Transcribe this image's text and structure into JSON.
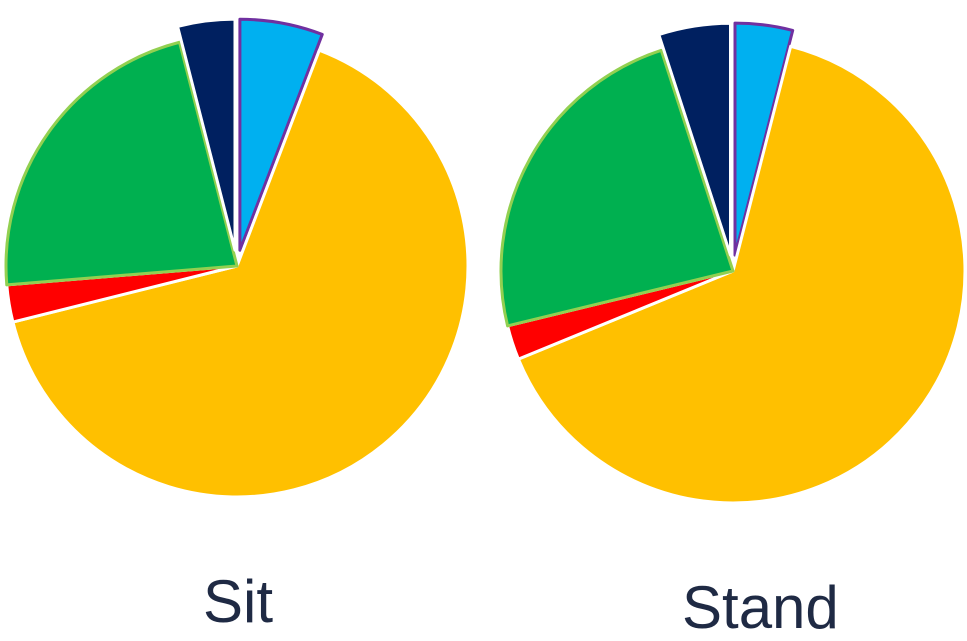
{
  "chart_data": [
    {
      "type": "pie",
      "title": "Sit",
      "start_angle_deg": 0,
      "direction": "clockwise",
      "slices": [
        {
          "value": 5.8,
          "color": "#00B0F0",
          "stroke": "#7030A0",
          "exploded": true
        },
        {
          "value": 65.3,
          "color": "#FFC000",
          "stroke": "#ffffff",
          "exploded": false
        },
        {
          "value": 2.6,
          "color": "#FF0000",
          "stroke": "#ffffff",
          "exploded": false
        },
        {
          "value": 22.3,
          "color": "#00B050",
          "stroke": "#92D050",
          "exploded": false
        },
        {
          "value": 4.0,
          "color": "#002060",
          "stroke": "#ffffff",
          "exploded": true
        }
      ]
    },
    {
      "type": "pie",
      "title": "Stand",
      "start_angle_deg": 0,
      "direction": "clockwise",
      "slices": [
        {
          "value": 4.0,
          "color": "#00B0F0",
          "stroke": "#7030A0",
          "exploded": true
        },
        {
          "value": 64.8,
          "color": "#FFC000",
          "stroke": "#ffffff",
          "exploded": false
        },
        {
          "value": 2.4,
          "color": "#FF0000",
          "stroke": "#ffffff",
          "exploded": false
        },
        {
          "value": 23.8,
          "color": "#00B050",
          "stroke": "#92D050",
          "exploded": false
        },
        {
          "value": 5.0,
          "color": "#002060",
          "stroke": "#ffffff",
          "exploded": true
        }
      ]
    }
  ]
}
